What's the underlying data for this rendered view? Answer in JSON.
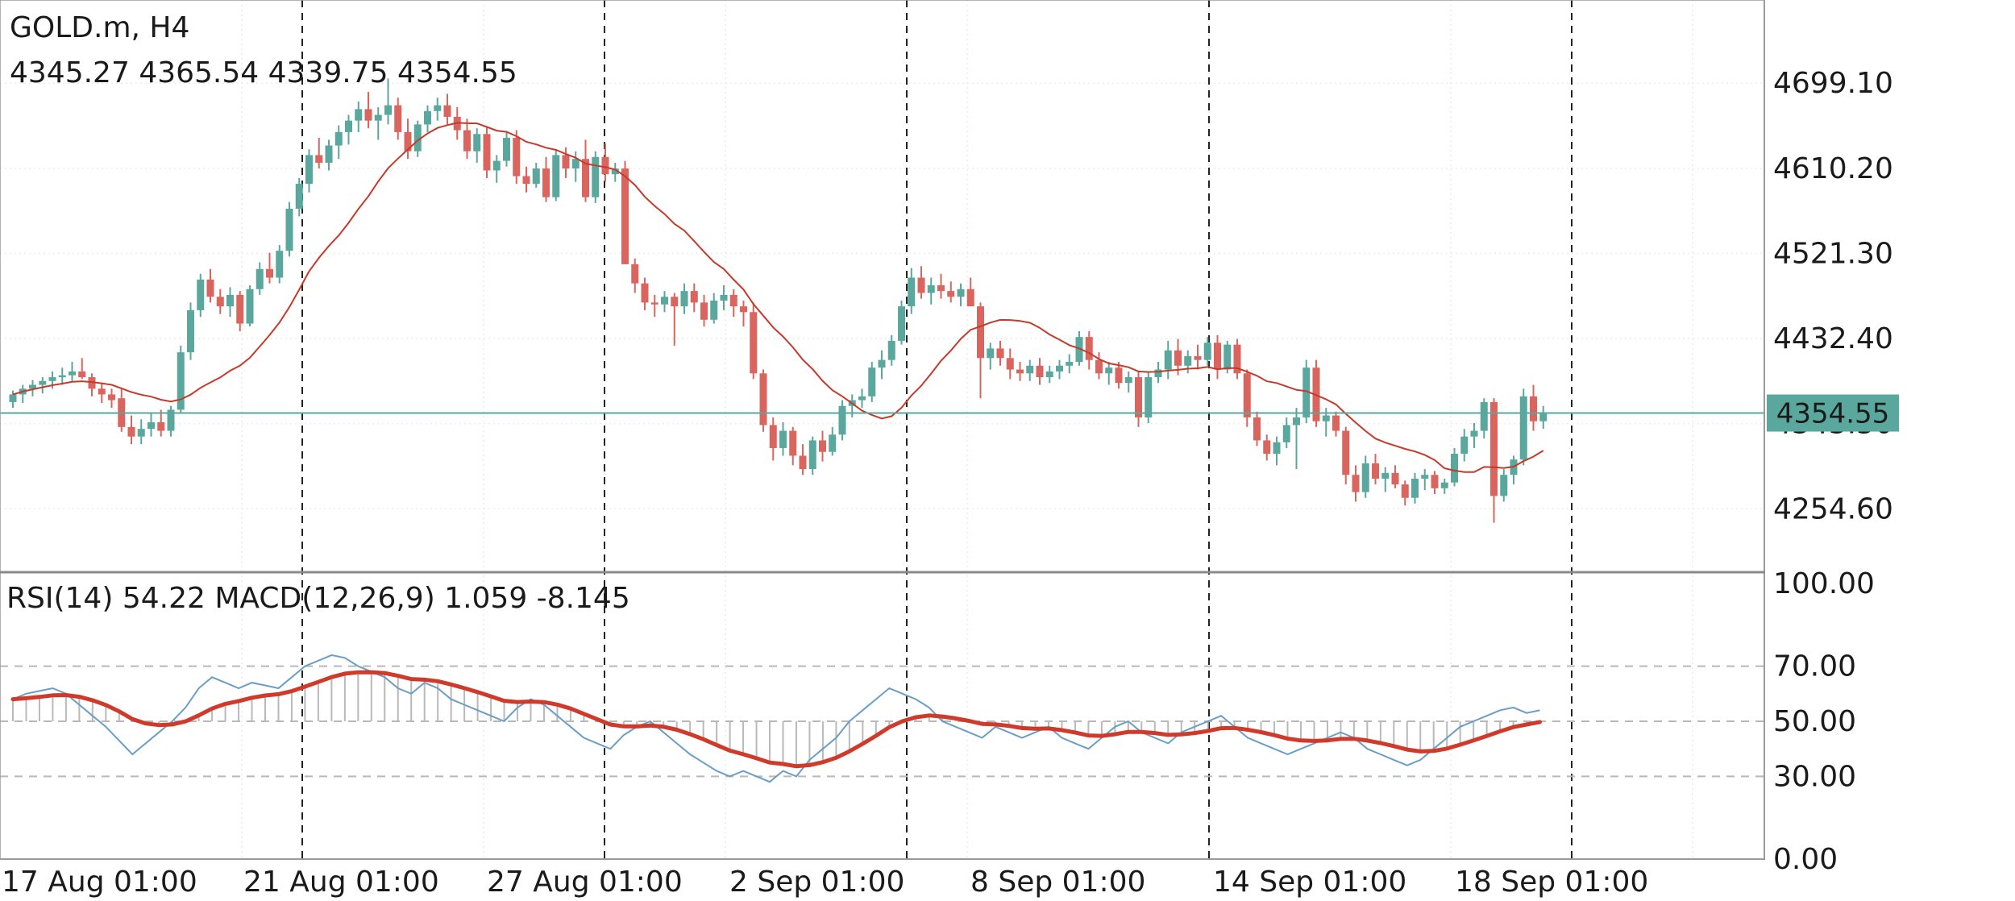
{
  "header": {
    "symbol": "GOLD.m, H4",
    "ohlc": "4345.27 4365.54 4339.75 4354.55"
  },
  "indicator_header": "RSI(14) 54.22 MACD(12,26,9) 1.059 -8.145",
  "price_badge": "4354.55",
  "colors": {
    "bull": "#5aa79d",
    "bear": "#d9655e",
    "ma": "#c43b2c",
    "rsi": "#6a9ec6",
    "macd_signal": "#d03a2a",
    "macd_hist": "#b9b9b9",
    "price_line": "#5aa79d"
  },
  "chart_data": [
    {
      "type": "candlestick",
      "symbol": "GOLD.m",
      "timeframe": "H4",
      "y_ticks": [
        "4699.10",
        "4610.20",
        "4521.30",
        "4432.40",
        "4343.50",
        "4254.60"
      ],
      "ylim": [
        4190,
        4786
      ],
      "x_ticks": [
        "17 Aug 01:00",
        "21 Aug 01:00",
        "27 Aug 01:00",
        "2 Sep 01:00",
        "8 Sep 01:00",
        "14 Sep 01:00",
        "18 Sep 01:00"
      ],
      "last_price": 4354.55,
      "grid": true,
      "candles": [
        [
          4366,
          4378,
          4360,
          4374
        ],
        [
          4374,
          4384,
          4365,
          4380
        ],
        [
          4380,
          4389,
          4372,
          4384
        ],
        [
          4384,
          4392,
          4375,
          4388
        ],
        [
          4388,
          4398,
          4380,
          4392
        ],
        [
          4392,
          4402,
          4384,
          4394
        ],
        [
          4394,
          4408,
          4388,
          4398
        ],
        [
          4398,
          4412,
          4390,
          4392
        ],
        [
          4392,
          4396,
          4372,
          4380
        ],
        [
          4380,
          4386,
          4365,
          4374
        ],
        [
          4374,
          4380,
          4360,
          4368
        ],
        [
          4370,
          4380,
          4335,
          4340
        ],
        [
          4340,
          4352,
          4322,
          4330
        ],
        [
          4330,
          4348,
          4322,
          4338
        ],
        [
          4338,
          4355,
          4330,
          4345
        ],
        [
          4345,
          4358,
          4330,
          4336
        ],
        [
          4336,
          4362,
          4330,
          4358
        ],
        [
          4358,
          4425,
          4355,
          4418
        ],
        [
          4418,
          4470,
          4410,
          4462
        ],
        [
          4462,
          4500,
          4455,
          4494
        ],
        [
          4494,
          4505,
          4470,
          4476
        ],
        [
          4476,
          4484,
          4458,
          4466
        ],
        [
          4466,
          4486,
          4455,
          4478
        ],
        [
          4478,
          4482,
          4440,
          4448
        ],
        [
          4448,
          4488,
          4445,
          4484
        ],
        [
          4484,
          4512,
          4478,
          4505
        ],
        [
          4505,
          4522,
          4490,
          4496
        ],
        [
          4496,
          4530,
          4490,
          4524
        ],
        [
          4524,
          4575,
          4518,
          4568
        ],
        [
          4568,
          4600,
          4560,
          4594
        ],
        [
          4594,
          4630,
          4585,
          4624
        ],
        [
          4624,
          4642,
          4610,
          4616
        ],
        [
          4616,
          4640,
          4608,
          4634
        ],
        [
          4634,
          4655,
          4620,
          4648
        ],
        [
          4648,
          4666,
          4635,
          4660
        ],
        [
          4660,
          4680,
          4648,
          4672
        ],
        [
          4672,
          4690,
          4652,
          4660
        ],
        [
          4660,
          4674,
          4640,
          4666
        ],
        [
          4666,
          4704,
          4656,
          4676
        ],
        [
          4676,
          4684,
          4640,
          4648
        ],
        [
          4648,
          4662,
          4620,
          4628
        ],
        [
          4628,
          4660,
          4622,
          4656
        ],
        [
          4656,
          4676,
          4648,
          4670
        ],
        [
          4670,
          4684,
          4660,
          4676
        ],
        [
          4676,
          4688,
          4656,
          4664
        ],
        [
          4664,
          4674,
          4640,
          4650
        ],
        [
          4650,
          4662,
          4620,
          4628
        ],
        [
          4628,
          4652,
          4616,
          4646
        ],
        [
          4646,
          4654,
          4600,
          4608
        ],
        [
          4608,
          4624,
          4595,
          4618
        ],
        [
          4618,
          4648,
          4612,
          4642
        ],
        [
          4642,
          4650,
          4594,
          4602
        ],
        [
          4602,
          4612,
          4585,
          4594
        ],
        [
          4594,
          4616,
          4590,
          4610
        ],
        [
          4610,
          4622,
          4575,
          4580
        ],
        [
          4580,
          4630,
          4576,
          4624
        ],
        [
          4624,
          4632,
          4600,
          4610
        ],
        [
          4610,
          4628,
          4596,
          4620
        ],
        [
          4620,
          4640,
          4575,
          4580
        ],
        [
          4580,
          4628,
          4574,
          4622
        ],
        [
          4622,
          4636,
          4596,
          4604
        ],
        [
          4604,
          4616,
          4596,
          4610
        ],
        [
          4610,
          4618,
          4510,
          4510
        ],
        [
          4510,
          4516,
          4480,
          4490
        ],
        [
          4490,
          4496,
          4462,
          4470
        ],
        [
          4470,
          4478,
          4455,
          4468
        ],
        [
          4468,
          4482,
          4460,
          4476
        ],
        [
          4476,
          4480,
          4425,
          4466
        ],
        [
          4466,
          4490,
          4458,
          4482
        ],
        [
          4482,
          4490,
          4460,
          4470
        ],
        [
          4470,
          4478,
          4445,
          4452
        ],
        [
          4452,
          4480,
          4448,
          4472
        ],
        [
          4472,
          4488,
          4462,
          4478
        ],
        [
          4478,
          4484,
          4455,
          4466
        ],
        [
          4466,
          4472,
          4445,
          4460
        ],
        [
          4460,
          4470,
          4390,
          4396
        ],
        [
          4396,
          4400,
          4335,
          4342
        ],
        [
          4342,
          4350,
          4305,
          4318
        ],
        [
          4318,
          4345,
          4310,
          4336
        ],
        [
          4336,
          4340,
          4300,
          4310
        ],
        [
          4310,
          4322,
          4290,
          4296
        ],
        [
          4296,
          4330,
          4290,
          4326
        ],
        [
          4326,
          4336,
          4304,
          4314
        ],
        [
          4314,
          4340,
          4310,
          4332
        ],
        [
          4332,
          4368,
          4326,
          4362
        ],
        [
          4362,
          4374,
          4350,
          4368
        ],
        [
          4368,
          4380,
          4360,
          4372
        ],
        [
          4372,
          4408,
          4366,
          4402
        ],
        [
          4402,
          4420,
          4390,
          4410
        ],
        [
          4410,
          4436,
          4404,
          4430
        ],
        [
          4430,
          4472,
          4426,
          4466
        ],
        [
          4466,
          4506,
          4458,
          4496
        ],
        [
          4496,
          4508,
          4474,
          4480
        ],
        [
          4480,
          4496,
          4468,
          4488
        ],
        [
          4488,
          4500,
          4474,
          4482
        ],
        [
          4482,
          4492,
          4470,
          4476
        ],
        [
          4476,
          4490,
          4466,
          4484
        ],
        [
          4484,
          4496,
          4470,
          4466
        ],
        [
          4466,
          4470,
          4370,
          4412
        ],
        [
          4412,
          4428,
          4400,
          4422
        ],
        [
          4422,
          4430,
          4404,
          4412
        ],
        [
          4412,
          4422,
          4390,
          4400
        ],
        [
          4400,
          4408,
          4388,
          4396
        ],
        [
          4396,
          4410,
          4388,
          4404
        ],
        [
          4404,
          4412,
          4384,
          4392
        ],
        [
          4392,
          4404,
          4386,
          4398
        ],
        [
          4398,
          4410,
          4390,
          4404
        ],
        [
          4404,
          4416,
          4396,
          4408
        ],
        [
          4408,
          4440,
          4404,
          4434
        ],
        [
          4434,
          4440,
          4400,
          4410
        ],
        [
          4410,
          4418,
          4390,
          4396
        ],
        [
          4396,
          4408,
          4384,
          4402
        ],
        [
          4402,
          4408,
          4380,
          4386
        ],
        [
          4386,
          4398,
          4376,
          4392
        ],
        [
          4392,
          4398,
          4340,
          4350
        ],
        [
          4350,
          4398,
          4344,
          4392
        ],
        [
          4392,
          4408,
          4386,
          4400
        ],
        [
          4400,
          4430,
          4390,
          4420
        ],
        [
          4420,
          4432,
          4394,
          4404
        ],
        [
          4404,
          4420,
          4396,
          4414
        ],
        [
          4414,
          4426,
          4400,
          4410
        ],
        [
          4410,
          4434,
          4404,
          4428
        ],
        [
          4428,
          4436,
          4390,
          4400
        ],
        [
          4400,
          4430,
          4396,
          4426
        ],
        [
          4426,
          4432,
          4390,
          4396
        ],
        [
          4396,
          4400,
          4340,
          4350
        ],
        [
          4350,
          4356,
          4320,
          4326
        ],
        [
          4326,
          4332,
          4305,
          4312
        ],
        [
          4312,
          4330,
          4300,
          4324
        ],
        [
          4324,
          4350,
          4318,
          4342
        ],
        [
          4342,
          4360,
          4296,
          4350
        ],
        [
          4350,
          4410,
          4344,
          4402
        ],
        [
          4402,
          4410,
          4340,
          4346
        ],
        [
          4346,
          4360,
          4330,
          4352
        ],
        [
          4352,
          4356,
          4330,
          4336
        ],
        [
          4336,
          4340,
          4280,
          4290
        ],
        [
          4290,
          4300,
          4262,
          4272
        ],
        [
          4272,
          4310,
          4266,
          4302
        ],
        [
          4302,
          4312,
          4280,
          4286
        ],
        [
          4286,
          4298,
          4272,
          4292
        ],
        [
          4292,
          4300,
          4276,
          4280
        ],
        [
          4280,
          4284,
          4258,
          4266
        ],
        [
          4266,
          4292,
          4260,
          4286
        ],
        [
          4286,
          4296,
          4274,
          4290
        ],
        [
          4290,
          4294,
          4270,
          4276
        ],
        [
          4276,
          4286,
          4270,
          4282
        ],
        [
          4282,
          4318,
          4278,
          4312
        ],
        [
          4312,
          4338,
          4304,
          4330
        ],
        [
          4330,
          4344,
          4318,
          4336
        ],
        [
          4336,
          4370,
          4328,
          4366
        ],
        [
          4366,
          4370,
          4240,
          4268
        ],
        [
          4268,
          4296,
          4262,
          4290
        ],
        [
          4290,
          4310,
          4280,
          4306
        ],
        [
          4306,
          4380,
          4300,
          4372
        ],
        [
          4372,
          4384,
          4336,
          4346
        ],
        [
          4346,
          4362,
          4338,
          4354.55
        ]
      ]
    },
    {
      "type": "line",
      "name": "RSI(14)",
      "value": 54.22,
      "ylim": [
        0,
        100
      ],
      "y_ticks": [
        "100.00",
        "70.00",
        "50.00",
        "30.00",
        "0.00"
      ],
      "levels": [
        70,
        50,
        30
      ],
      "values": [
        58,
        60,
        61,
        62,
        60,
        56,
        52,
        48,
        43,
        38,
        42,
        46,
        50,
        55,
        62,
        66,
        64,
        62,
        64,
        63,
        62,
        66,
        70,
        72,
        74,
        73,
        70,
        68,
        66,
        62,
        60,
        64,
        62,
        58,
        56,
        54,
        52,
        50,
        55,
        58,
        56,
        52,
        48,
        44,
        42,
        40,
        45,
        48,
        50,
        46,
        42,
        38,
        35,
        32,
        30,
        32,
        30,
        28,
        32,
        30,
        36,
        40,
        44,
        50,
        54,
        58,
        62,
        60,
        58,
        55,
        50,
        48,
        46,
        44,
        48,
        46,
        44,
        46,
        48,
        44,
        42,
        40,
        44,
        48,
        50,
        46,
        44,
        42,
        46,
        48,
        50,
        52,
        48,
        44,
        42,
        40,
        38,
        40,
        42,
        44,
        46,
        44,
        40,
        38,
        36,
        34,
        36,
        40,
        44,
        48,
        50,
        52,
        54,
        55,
        53,
        54
      ]
    },
    {
      "type": "line",
      "name": "MACD(12,26,9)",
      "values": [
        1.059,
        -8.145
      ]
    }
  ]
}
